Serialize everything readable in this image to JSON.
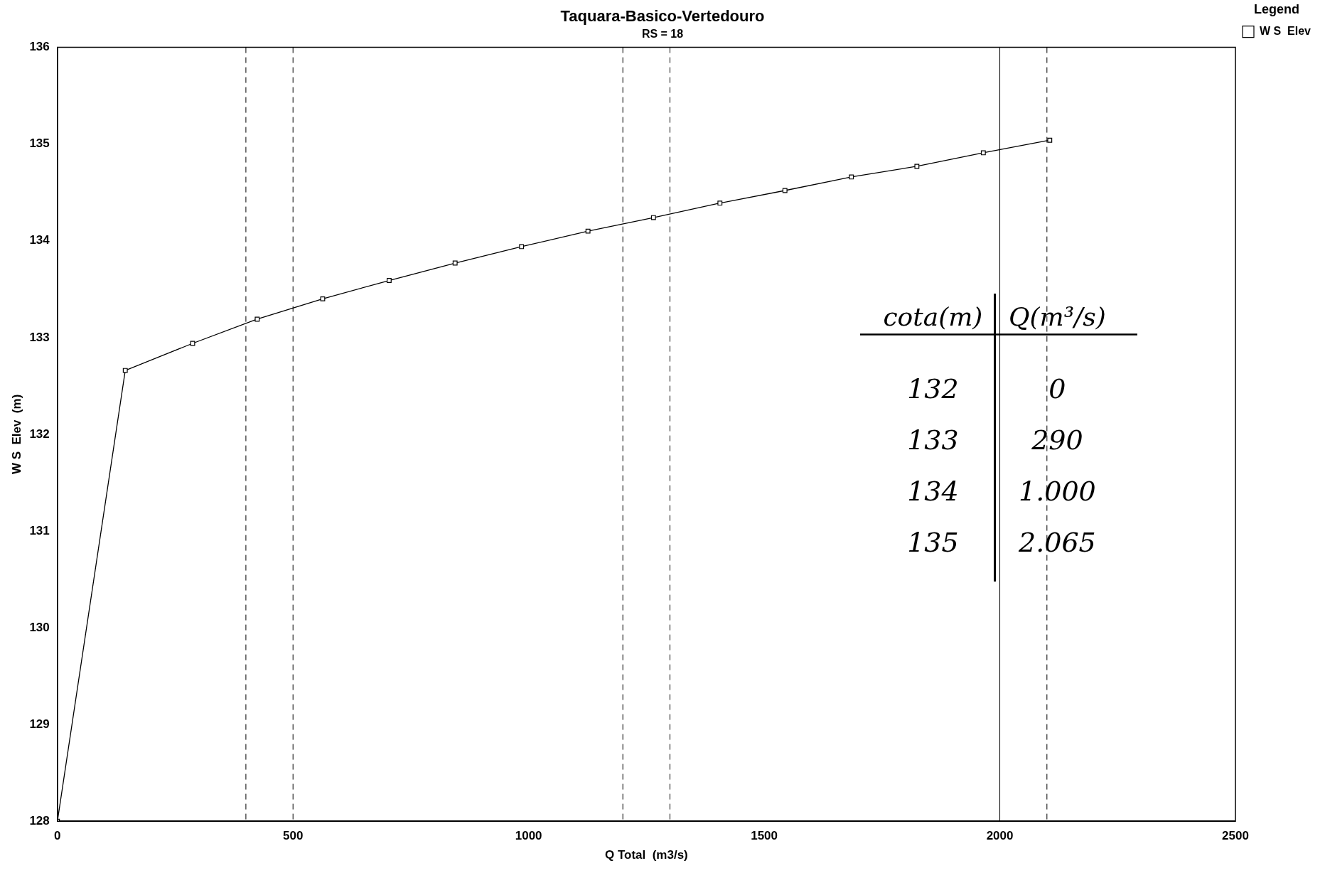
{
  "chart_data": {
    "type": "line",
    "title": "Taquara-Basico-Vertedouro",
    "subtitle": "RS = 18",
    "xlabel": "Q Total  (m3/s)",
    "ylabel": "W S  Elev  (m)",
    "legend_title": "Legend",
    "legend": "top right",
    "marker": "square",
    "grid": false,
    "x": [
      0,
      144,
      287,
      424,
      563,
      704,
      844,
      985,
      1126,
      1265,
      1406,
      1544,
      1685,
      1824,
      1965,
      2106
    ],
    "series": [
      {
        "name": "W S  Elev",
        "color": "#000000",
        "values": [
          128,
          132.66,
          132.94,
          133.19,
          133.4,
          133.59,
          133.77,
          133.94,
          134.1,
          134.24,
          134.39,
          134.52,
          134.66,
          134.77,
          134.91,
          135.04
        ]
      }
    ],
    "xlim": [
      0,
      2500
    ],
    "xticks": [
      0,
      500,
      1000,
      1500,
      2000,
      2500
    ],
    "ylim": [
      128,
      136
    ],
    "yticks": [
      128,
      129,
      130,
      131,
      132,
      133,
      134,
      135,
      136
    ],
    "ref_lines": [
      {
        "axis": "x",
        "value": 400,
        "line_style": "dashed"
      },
      {
        "axis": "x",
        "value": 500,
        "line_style": "dashed"
      },
      {
        "axis": "x",
        "value": 1200,
        "line_style": "dashed"
      },
      {
        "axis": "x",
        "value": 1300,
        "line_style": "dashed"
      },
      {
        "axis": "x",
        "value": 2000,
        "line_style": "solid"
      },
      {
        "axis": "x",
        "value": 2100,
        "line_style": "dashed"
      }
    ],
    "annotations": [
      "cota(m)",
      "Q(m³/s)",
      "132",
      "0",
      "133",
      "290",
      "134",
      "1.000",
      "135",
      "2.065"
    ]
  }
}
